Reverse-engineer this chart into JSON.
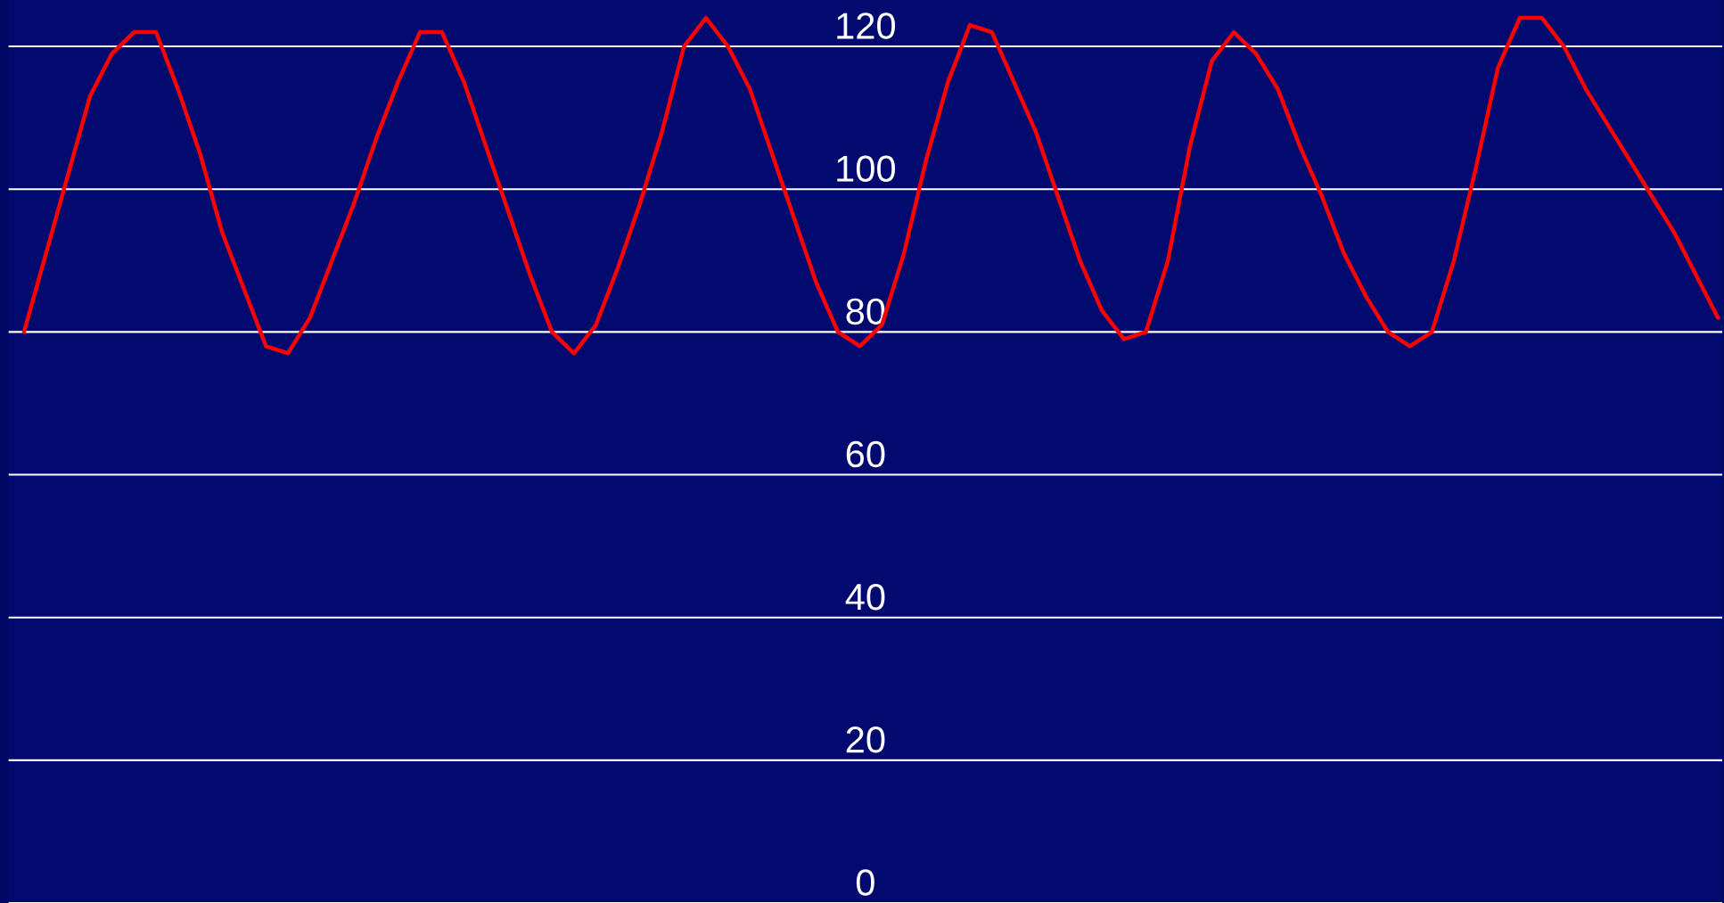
{
  "chart_data": {
    "type": "line",
    "categories": [
      null,
      null,
      null,
      null,
      null,
      null,
      null,
      null,
      null,
      null,
      null,
      null,
      null,
      null,
      null,
      null,
      null,
      null,
      null,
      null,
      null,
      null,
      null,
      null,
      null,
      null,
      null,
      null,
      null,
      null,
      null,
      null,
      null,
      null,
      null,
      null,
      null,
      null,
      null,
      null,
      null,
      null,
      null,
      null,
      null,
      null,
      null,
      null,
      null,
      null,
      null,
      null,
      null,
      null,
      null,
      null,
      null,
      null,
      null,
      null,
      null,
      null,
      null,
      null,
      null,
      null,
      null,
      null,
      null,
      null,
      null,
      null,
      null,
      null,
      null,
      null,
      null,
      null
    ],
    "series": [
      {
        "color": "#ff0000",
        "values": [
          80,
          91,
          102,
          113,
          119,
          122,
          122,
          114,
          105,
          94,
          86,
          78,
          77,
          82,
          90,
          98,
          107,
          115,
          122,
          122,
          115,
          106,
          97,
          88,
          80,
          77,
          81,
          89,
          98,
          108,
          120,
          124,
          120,
          114,
          105,
          96,
          87,
          80,
          78,
          81,
          91,
          104,
          115,
          123,
          122,
          115,
          108,
          99,
          90,
          83,
          79,
          80,
          90,
          106,
          118,
          122,
          119,
          114,
          106,
          99,
          91,
          85,
          80,
          78,
          80,
          90,
          103,
          117,
          124,
          124,
          120,
          114,
          109,
          104,
          99,
          94,
          88,
          82
        ]
      }
    ],
    "ylim": [
      0,
      126.5
    ],
    "yticks": [
      0,
      20,
      40,
      60,
      80,
      100,
      120
    ],
    "grid": "y",
    "tick_labels": "y",
    "line_style": "solid"
  }
}
